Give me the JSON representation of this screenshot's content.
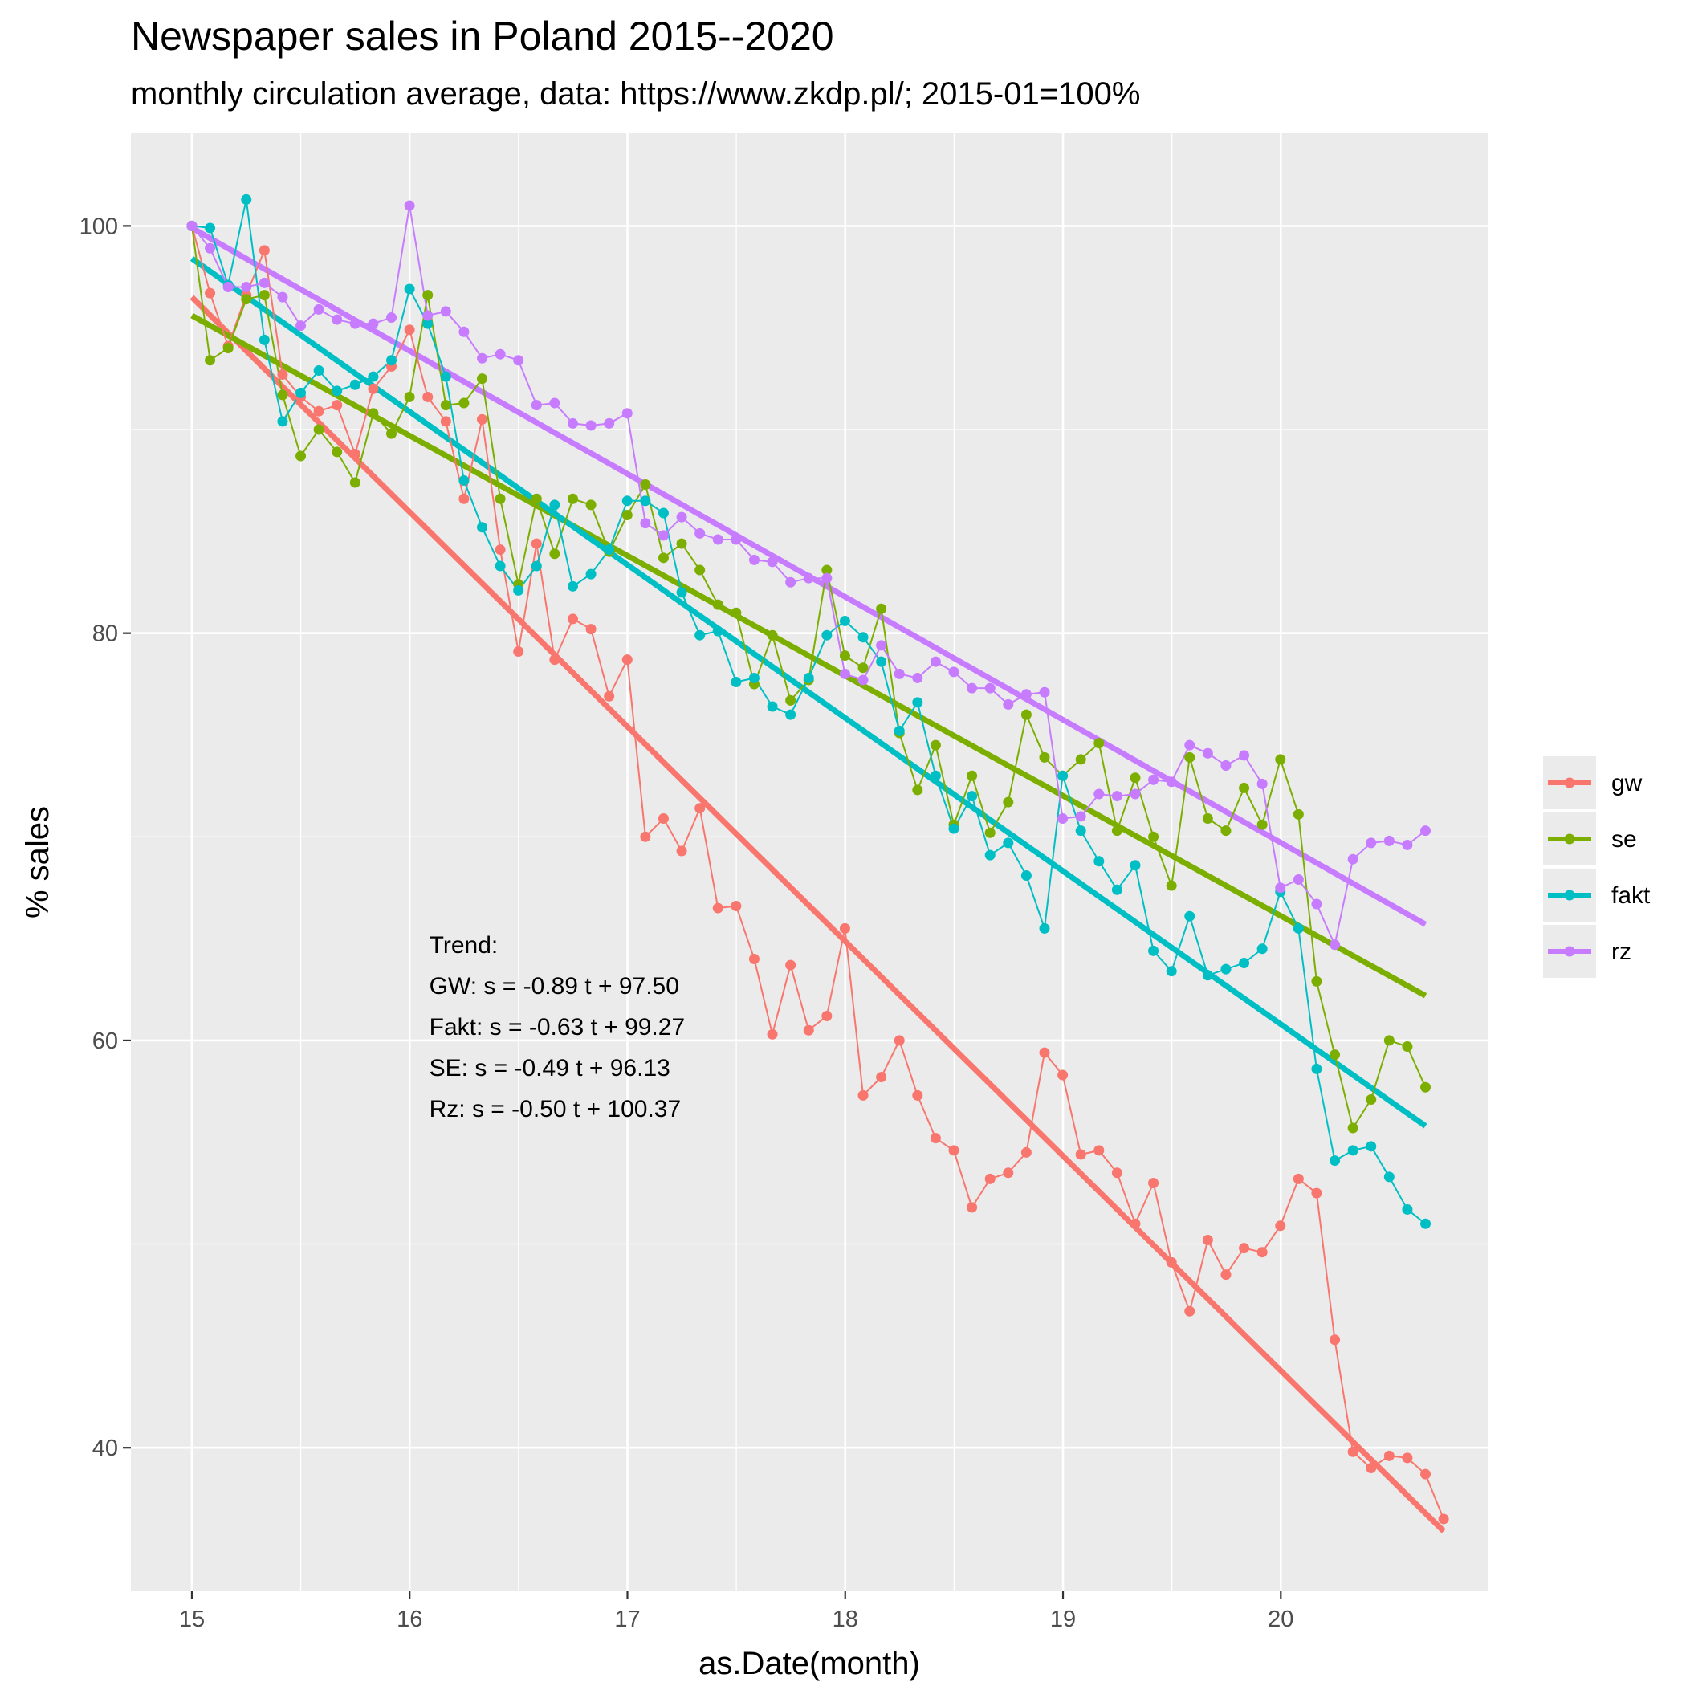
{
  "chart_data": {
    "type": "line",
    "title": "Newspaper sales in Poland 2015--2020",
    "subtitle": "monthly circulation average, data: https://www.zkdp.pl/; 2015-01=100%",
    "xlabel": "as.Date(month)",
    "ylabel": "% sales",
    "xlim": [
      14.72,
      20.95
    ],
    "ylim": [
      32.95,
      104.55
    ],
    "x_ticks": [
      15,
      16,
      17,
      18,
      19,
      20
    ],
    "x_tick_labels": [
      "15",
      "16",
      "17",
      "18",
      "19",
      "20"
    ],
    "y_ticks": [
      40,
      60,
      80,
      100
    ],
    "y_tick_labels": [
      "40",
      "60",
      "80",
      "100"
    ],
    "grid": true,
    "legend_position": "right",
    "x_start": 15,
    "month_step": 0.0833,
    "series": [
      {
        "name": "gw",
        "color": "#F8766D",
        "values": [
          100,
          96.7,
          94.1,
          96.6,
          98.8,
          92.7,
          91.6,
          90.9,
          91.2,
          88.8,
          92.0,
          93.1,
          94.9,
          91.6,
          90.4,
          86.6,
          90.5,
          84.1,
          79.1,
          84.4,
          78.7,
          80.7,
          80.2,
          76.9,
          78.7,
          70.0,
          70.9,
          69.3,
          71.4,
          66.5,
          66.6,
          64.0,
          60.3,
          63.7,
          60.5,
          61.2,
          65.5,
          57.3,
          58.2,
          60.0,
          57.3,
          55.2,
          54.6,
          51.8,
          53.2,
          53.5,
          54.5,
          59.4,
          58.3,
          54.4,
          54.6,
          53.5,
          51.0,
          53.0,
          49.1,
          46.7,
          50.2,
          48.5,
          49.8,
          49.6,
          50.9,
          53.2,
          52.5,
          45.3,
          39.8,
          39.0,
          39.6,
          39.5,
          38.7,
          36.5
        ],
        "trend": {
          "intercept": 96.5,
          "end": 35.9
        }
      },
      {
        "name": "se",
        "color": "#7CAE00",
        "values": [
          100,
          93.4,
          94.0,
          96.4,
          96.6,
          91.7,
          88.7,
          90.0,
          88.9,
          87.4,
          90.8,
          89.8,
          91.6,
          96.6,
          91.2,
          91.3,
          92.5,
          86.6,
          82.4,
          86.6,
          83.9,
          86.6,
          86.3,
          84.0,
          85.8,
          87.3,
          83.7,
          84.4,
          83.1,
          81.4,
          81.0,
          77.5,
          79.9,
          76.7,
          77.7,
          83.1,
          78.9,
          78.3,
          81.2,
          75.1,
          72.3,
          74.5,
          70.6,
          73.0,
          70.2,
          71.7,
          76.0,
          73.9,
          73.0,
          73.8,
          74.6,
          70.3,
          72.9,
          70.0,
          67.6,
          73.9,
          70.9,
          70.3,
          72.4,
          70.6,
          73.8,
          71.1,
          62.9,
          59.3,
          55.7,
          57.1,
          60.0,
          59.7,
          57.7
        ],
        "trend": {
          "intercept": 95.6,
          "end": 62.2
        }
      },
      {
        "name": "fakt",
        "color": "#00BFC4",
        "values": [
          100,
          99.9,
          97.1,
          101.3,
          94.4,
          90.4,
          91.8,
          92.9,
          91.9,
          92.2,
          92.6,
          93.4,
          96.9,
          95.2,
          92.6,
          87.5,
          85.2,
          83.3,
          82.1,
          83.3,
          86.3,
          82.3,
          82.9,
          84.1,
          86.5,
          86.5,
          85.9,
          82.0,
          79.9,
          80.1,
          77.6,
          77.8,
          76.4,
          76.0,
          77.8,
          79.9,
          80.6,
          79.8,
          78.6,
          75.2,
          76.6,
          73.0,
          70.4,
          72.0,
          69.1,
          69.7,
          68.1,
          65.5,
          73.0,
          70.3,
          68.8,
          67.4,
          68.6,
          64.4,
          63.4,
          66.1,
          63.2,
          63.5,
          63.8,
          64.5,
          67.3,
          65.5,
          58.6,
          54.1,
          54.6,
          54.8,
          53.3,
          51.7,
          51.0
        ],
        "trend": {
          "intercept": 98.4,
          "end": 55.8
        }
      },
      {
        "name": "rz",
        "color": "#C77CFF",
        "values": [
          100,
          98.9,
          97.0,
          97.0,
          97.2,
          96.5,
          95.1,
          95.9,
          95.4,
          95.2,
          95.2,
          95.5,
          101.0,
          95.6,
          95.8,
          94.8,
          93.5,
          93.7,
          93.4,
          91.2,
          91.3,
          90.3,
          90.2,
          90.3,
          90.8,
          85.4,
          84.8,
          85.7,
          84.9,
          84.6,
          84.6,
          83.6,
          83.5,
          82.5,
          82.7,
          82.7,
          78.0,
          77.7,
          79.4,
          78.0,
          77.8,
          78.6,
          78.1,
          77.3,
          77.3,
          76.5,
          77.0,
          77.1,
          70.9,
          71.0,
          72.1,
          72.0,
          72.1,
          72.8,
          72.7,
          74.5,
          74.1,
          73.5,
          74.0,
          72.6,
          67.5,
          67.9,
          66.7,
          64.7,
          68.9,
          69.7,
          69.8,
          69.6,
          70.3
        ],
        "trend": {
          "intercept": 99.9,
          "end": 65.7
        }
      }
    ],
    "annotation": {
      "lines": [
        "Trend:",
        "GW: s = -0.89 t + 97.50",
        "Fakt: s = -0.63 t + 99.27",
        "SE: s = -0.49 t + 96.13",
        "Rz: s = -0.50 t + 100.37"
      ],
      "x": 16.09,
      "y": 64.3
    }
  }
}
